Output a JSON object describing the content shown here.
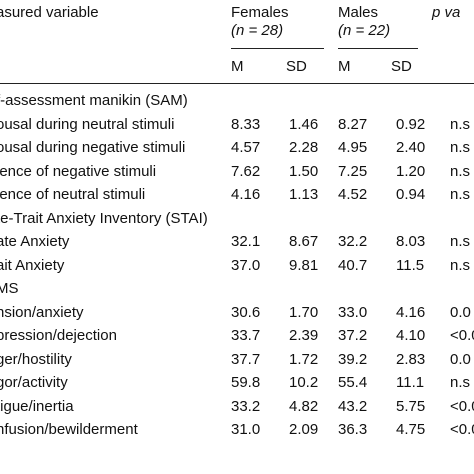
{
  "header": {
    "variable_col": "asured variable",
    "females_label": "Females",
    "females_n": "(n = 28)",
    "males_label": "Males",
    "males_n": "(n = 22)",
    "p_col": "p va",
    "sub_m1": "M",
    "sub_sd1": "SD",
    "sub_m2": "M",
    "sub_sd2": "SD"
  },
  "rows": [
    {
      "kind": "section",
      "label": "f-assessment manikin (SAM)"
    },
    {
      "kind": "data",
      "label": "ousal during neutral stimuli",
      "f_m": "8.33",
      "f_sd": "1.46",
      "m_m": "8.27",
      "m_sd": "0.92",
      "p": "n.s"
    },
    {
      "kind": "data",
      "label": "ousal during negative stimuli",
      "f_m": "4.57",
      "f_sd": "2.28",
      "m_m": "4.95",
      "m_sd": "2.40",
      "p": "n.s"
    },
    {
      "kind": "data",
      "label": "lence of negative stimuli",
      "f_m": "7.62",
      "f_sd": "1.50",
      "m_m": "7.25",
      "m_sd": "1.20",
      "p": "n.s"
    },
    {
      "kind": "data",
      "label": "lence of neutral stimuli",
      "f_m": "4.16",
      "f_sd": "1.13",
      "m_m": "4.52",
      "m_sd": "0.94",
      "p": "n.s"
    },
    {
      "kind": "section",
      "label": "te-Trait Anxiety Inventory (STAI)"
    },
    {
      "kind": "data",
      "label": "ate Anxiety",
      "f_m": "32.1",
      "f_sd": "8.67",
      "m_m": "32.2",
      "m_sd": "8.03",
      "p": "n.s"
    },
    {
      "kind": "data",
      "label": "ait Anxiety",
      "f_m": "37.0",
      "f_sd": "9.81",
      "m_m": "40.7",
      "m_sd": "11.5",
      "p": "n.s"
    },
    {
      "kind": "section",
      "label": "MS"
    },
    {
      "kind": "data",
      "label": "nsion/anxiety",
      "f_m": "30.6",
      "f_sd": "1.70",
      "m_m": "33.0",
      "m_sd": "4.16",
      "p": "0.0"
    },
    {
      "kind": "data",
      "label": "pression/dejection",
      "f_m": "33.7",
      "f_sd": "2.39",
      "m_m": "37.2",
      "m_sd": "4.10",
      "p": "<0.0"
    },
    {
      "kind": "data",
      "label": "ger/hostility",
      "f_m": "37.7",
      "f_sd": "1.72",
      "m_m": "39.2",
      "m_sd": "2.83",
      "p": "0.0"
    },
    {
      "kind": "data",
      "label": "gor/activity",
      "f_m": "59.8",
      "f_sd": "10.2",
      "m_m": "55.4",
      "m_sd": "11.1",
      "p": "n.s"
    },
    {
      "kind": "data",
      "label": "tigue/inertia",
      "f_m": "33.2",
      "f_sd": "4.82",
      "m_m": "43.2",
      "m_sd": "5.75",
      "p": "<0.0"
    },
    {
      "kind": "data",
      "label": "nfusion/bewilderment",
      "f_m": "31.0",
      "f_sd": "2.09",
      "m_m": "36.3",
      "m_sd": "4.75",
      "p": "<0.0"
    }
  ]
}
